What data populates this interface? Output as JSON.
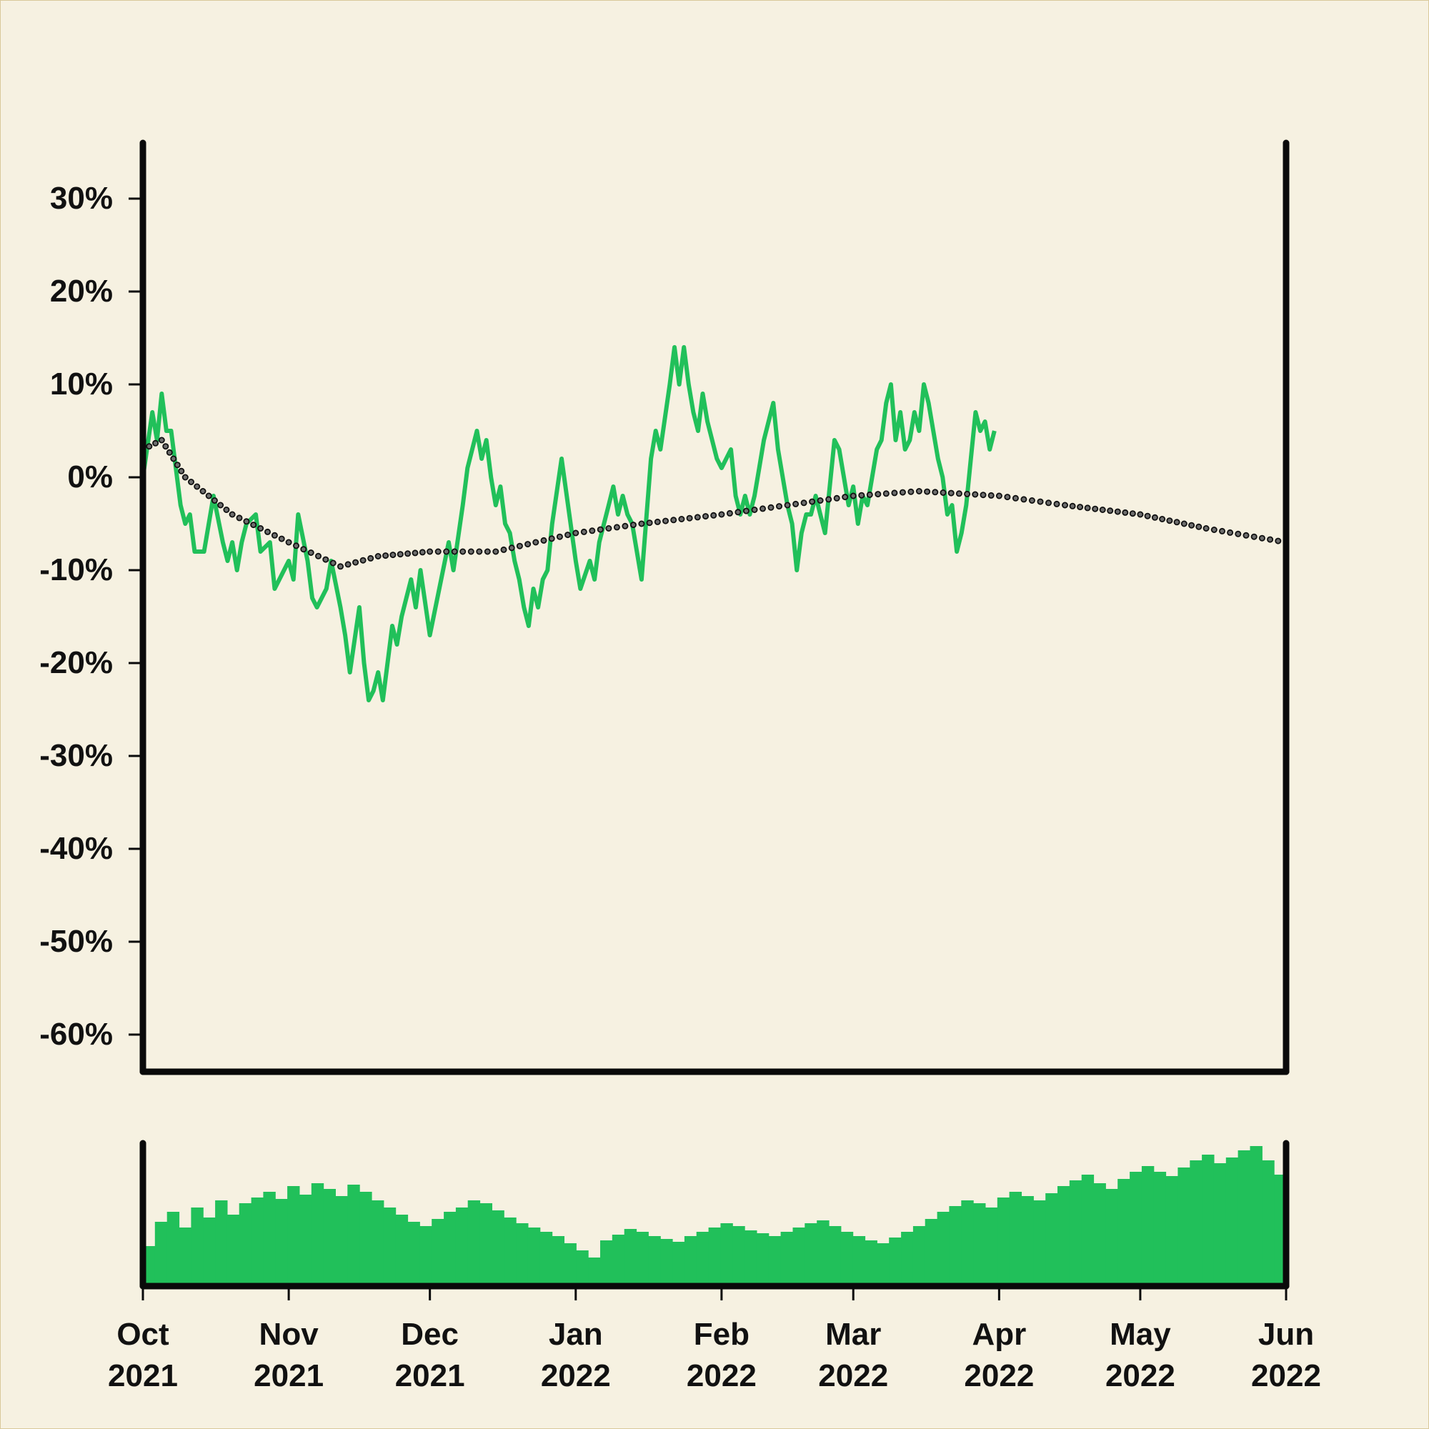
{
  "chart_data": {
    "type": "line",
    "colors": {
      "background": "#f6f1e1",
      "price_line": "#21c05a",
      "trend_dots": "#3a3a3a",
      "volume_bars": "#21c05a",
      "axes": "#0a0a0a"
    },
    "title": "",
    "xlabel": "",
    "ylabel": "",
    "ylim": [
      -64,
      36
    ],
    "y_ticks": [
      30,
      20,
      10,
      0,
      -10,
      -20,
      -30,
      -40,
      -50,
      -60
    ],
    "y_tick_labels": [
      "30%",
      "20%",
      "10%",
      "0%",
      "-10%",
      "-20%",
      "-30%",
      "-40%",
      "-50%",
      "-60%"
    ],
    "x_range": [
      "2021-10-01",
      "2022-06-01"
    ],
    "x_ticks": [
      {
        "date": "2021-10-01",
        "month": "Oct",
        "year": "2021"
      },
      {
        "date": "2021-11-01",
        "month": "Nov",
        "year": "2021"
      },
      {
        "date": "2021-12-01",
        "month": "Dec",
        "year": "2021"
      },
      {
        "date": "2022-01-01",
        "month": "Jan",
        "year": "2022"
      },
      {
        "date": "2022-02-01",
        "month": "Feb",
        "year": "2022"
      },
      {
        "date": "2022-03-01",
        "month": "Mar",
        "year": "2022"
      },
      {
        "date": "2022-04-01",
        "month": "Apr",
        "year": "2022"
      },
      {
        "date": "2022-05-01",
        "month": "May",
        "year": "2022"
      },
      {
        "date": "2022-06-01",
        "month": "Jun",
        "year": "2022"
      }
    ],
    "grid": false,
    "legend": "none",
    "series": [
      {
        "style": "solid line",
        "points": [
          [
            "2021-10-01",
            0
          ],
          [
            "2021-10-03",
            7
          ],
          [
            "2021-10-04",
            4
          ],
          [
            "2021-10-05",
            9
          ],
          [
            "2021-10-06",
            5
          ],
          [
            "2021-10-07",
            5
          ],
          [
            "2021-10-08",
            1
          ],
          [
            "2021-10-09",
            -3
          ],
          [
            "2021-10-10",
            -5
          ],
          [
            "2021-10-11",
            -4
          ],
          [
            "2021-10-12",
            -8
          ],
          [
            "2021-10-14",
            -8
          ],
          [
            "2021-10-16",
            -2
          ],
          [
            "2021-10-18",
            -7
          ],
          [
            "2021-10-19",
            -9
          ],
          [
            "2021-10-20",
            -7
          ],
          [
            "2021-10-21",
            -10
          ],
          [
            "2021-10-22",
            -7
          ],
          [
            "2021-10-23",
            -5
          ],
          [
            "2021-10-25",
            -4
          ],
          [
            "2021-10-26",
            -8
          ],
          [
            "2021-10-28",
            -7
          ],
          [
            "2021-10-29",
            -12
          ],
          [
            "2021-11-01",
            -9
          ],
          [
            "2021-11-02",
            -11
          ],
          [
            "2021-11-03",
            -4
          ],
          [
            "2021-11-05",
            -9
          ],
          [
            "2021-11-06",
            -13
          ],
          [
            "2021-11-07",
            -14
          ],
          [
            "2021-11-09",
            -12
          ],
          [
            "2021-11-10",
            -9
          ],
          [
            "2021-11-12",
            -14
          ],
          [
            "2021-11-13",
            -17
          ],
          [
            "2021-11-14",
            -21
          ],
          [
            "2021-11-16",
            -14
          ],
          [
            "2021-11-17",
            -20
          ],
          [
            "2021-11-18",
            -24
          ],
          [
            "2021-11-19",
            -23
          ],
          [
            "2021-11-20",
            -21
          ],
          [
            "2021-11-21",
            -24
          ],
          [
            "2021-11-23",
            -16
          ],
          [
            "2021-11-24",
            -18
          ],
          [
            "2021-11-25",
            -15
          ],
          [
            "2021-11-27",
            -11
          ],
          [
            "2021-11-28",
            -14
          ],
          [
            "2021-11-29",
            -10
          ],
          [
            "2021-12-01",
            -17
          ],
          [
            "2021-12-03",
            -12
          ],
          [
            "2021-12-05",
            -7
          ],
          [
            "2021-12-06",
            -10
          ],
          [
            "2021-12-08",
            -3
          ],
          [
            "2021-12-09",
            1
          ],
          [
            "2021-12-11",
            5
          ],
          [
            "2021-12-12",
            2
          ],
          [
            "2021-12-13",
            4
          ],
          [
            "2021-12-14",
            0
          ],
          [
            "2021-12-15",
            -3
          ],
          [
            "2021-12-16",
            -1
          ],
          [
            "2021-12-17",
            -5
          ],
          [
            "2021-12-18",
            -6
          ],
          [
            "2021-12-19",
            -9
          ],
          [
            "2021-12-20",
            -11
          ],
          [
            "2021-12-21",
            -14
          ],
          [
            "2021-12-22",
            -16
          ],
          [
            "2021-12-23",
            -12
          ],
          [
            "2021-12-24",
            -14
          ],
          [
            "2021-12-25",
            -11
          ],
          [
            "2021-12-26",
            -10
          ],
          [
            "2021-12-27",
            -5
          ],
          [
            "2021-12-29",
            2
          ],
          [
            "2022-01-01",
            -9
          ],
          [
            "2022-01-02",
            -12
          ],
          [
            "2022-01-04",
            -9
          ],
          [
            "2022-01-05",
            -11
          ],
          [
            "2022-01-06",
            -7
          ],
          [
            "2022-01-07",
            -5
          ],
          [
            "2022-01-08",
            -3
          ],
          [
            "2022-01-09",
            -1
          ],
          [
            "2022-01-10",
            -4
          ],
          [
            "2022-01-11",
            -2
          ],
          [
            "2022-01-12",
            -4
          ],
          [
            "2022-01-13",
            -5
          ],
          [
            "2022-01-15",
            -11
          ],
          [
            "2022-01-17",
            2
          ],
          [
            "2022-01-18",
            5
          ],
          [
            "2022-01-19",
            3
          ],
          [
            "2022-01-21",
            10
          ],
          [
            "2022-01-22",
            14
          ],
          [
            "2022-01-23",
            10
          ],
          [
            "2022-01-24",
            14
          ],
          [
            "2022-01-25",
            10
          ],
          [
            "2022-01-26",
            7
          ],
          [
            "2022-01-27",
            5
          ],
          [
            "2022-01-28",
            9
          ],
          [
            "2022-01-29",
            6
          ],
          [
            "2022-01-31",
            2
          ],
          [
            "2022-02-01",
            1
          ],
          [
            "2022-02-03",
            3
          ],
          [
            "2022-02-04",
            -2
          ],
          [
            "2022-02-05",
            -4
          ],
          [
            "2022-02-06",
            -2
          ],
          [
            "2022-02-07",
            -4
          ],
          [
            "2022-02-08",
            -2
          ],
          [
            "2022-02-09",
            1
          ],
          [
            "2022-02-10",
            4
          ],
          [
            "2022-02-12",
            8
          ],
          [
            "2022-02-13",
            3
          ],
          [
            "2022-02-15",
            -3
          ],
          [
            "2022-02-16",
            -5
          ],
          [
            "2022-02-17",
            -10
          ],
          [
            "2022-02-18",
            -6
          ],
          [
            "2022-02-19",
            -4
          ],
          [
            "2022-02-20",
            -4
          ],
          [
            "2022-02-21",
            -2
          ],
          [
            "2022-02-22",
            -4
          ],
          [
            "2022-02-23",
            -6
          ],
          [
            "2022-02-24",
            -1
          ],
          [
            "2022-02-25",
            4
          ],
          [
            "2022-02-26",
            3
          ],
          [
            "2022-02-27",
            0
          ],
          [
            "2022-02-28",
            -3
          ],
          [
            "2022-03-01",
            -1
          ],
          [
            "2022-03-02",
            -5
          ],
          [
            "2022-03-03",
            -2
          ],
          [
            "2022-03-04",
            -3
          ],
          [
            "2022-03-05",
            0
          ],
          [
            "2022-03-06",
            3
          ],
          [
            "2022-03-07",
            4
          ],
          [
            "2022-03-08",
            8
          ],
          [
            "2022-03-09",
            10
          ],
          [
            "2022-03-10",
            4
          ],
          [
            "2022-03-11",
            7
          ],
          [
            "2022-03-12",
            3
          ],
          [
            "2022-03-13",
            4
          ],
          [
            "2022-03-14",
            7
          ],
          [
            "2022-03-15",
            5
          ],
          [
            "2022-03-16",
            10
          ],
          [
            "2022-03-17",
            8
          ],
          [
            "2022-03-18",
            5
          ],
          [
            "2022-03-19",
            2
          ],
          [
            "2022-03-20",
            0
          ],
          [
            "2022-03-21",
            -4
          ],
          [
            "2022-03-22",
            -3
          ],
          [
            "2022-03-23",
            -8
          ],
          [
            "2022-03-24",
            -6
          ],
          [
            "2022-03-25",
            -3
          ],
          [
            "2022-03-26",
            2
          ],
          [
            "2022-03-27",
            7
          ],
          [
            "2022-03-28",
            5
          ],
          [
            "2022-03-29",
            6
          ],
          [
            "2022-03-30",
            3
          ],
          [
            "2022-03-31",
            5
          ]
        ]
      },
      {
        "style": "dotted trend line",
        "points": [
          [
            "2021-10-01",
            3
          ],
          [
            "2021-10-05",
            4
          ],
          [
            "2021-10-10",
            0
          ],
          [
            "2021-10-20",
            -4
          ],
          [
            "2021-11-01",
            -7
          ],
          [
            "2021-11-12",
            -9.6
          ],
          [
            "2021-11-20",
            -8.5
          ],
          [
            "2021-12-01",
            -8
          ],
          [
            "2021-12-15",
            -8
          ],
          [
            "2022-01-01",
            -6
          ],
          [
            "2022-01-15",
            -5
          ],
          [
            "2022-02-01",
            -4
          ],
          [
            "2022-02-15",
            -3
          ],
          [
            "2022-03-01",
            -2
          ],
          [
            "2022-03-15",
            -1.5
          ],
          [
            "2022-04-01",
            -2
          ],
          [
            "2022-04-15",
            -3
          ],
          [
            "2022-05-01",
            -4
          ],
          [
            "2022-05-15",
            -5.5
          ],
          [
            "2022-06-01",
            -7
          ]
        ]
      }
    ],
    "volume": {
      "type": "bar",
      "values": [
        0.28,
        0.45,
        0.52,
        0.41,
        0.55,
        0.48,
        0.6,
        0.5,
        0.58,
        0.62,
        0.66,
        0.61,
        0.7,
        0.64,
        0.72,
        0.68,
        0.63,
        0.71,
        0.66,
        0.6,
        0.55,
        0.5,
        0.45,
        0.42,
        0.47,
        0.52,
        0.55,
        0.6,
        0.58,
        0.53,
        0.48,
        0.44,
        0.41,
        0.38,
        0.35,
        0.3,
        0.25,
        0.2,
        0.32,
        0.36,
        0.4,
        0.38,
        0.35,
        0.33,
        0.31,
        0.35,
        0.38,
        0.41,
        0.44,
        0.42,
        0.39,
        0.37,
        0.35,
        0.38,
        0.41,
        0.44,
        0.46,
        0.42,
        0.38,
        0.35,
        0.32,
        0.3,
        0.34,
        0.38,
        0.42,
        0.47,
        0.52,
        0.56,
        0.6,
        0.58,
        0.55,
        0.62,
        0.66,
        0.63,
        0.6,
        0.65,
        0.7,
        0.74,
        0.78,
        0.72,
        0.68,
        0.75,
        0.8,
        0.84,
        0.8,
        0.77,
        0.83,
        0.88,
        0.92,
        0.86,
        0.9,
        0.95,
        0.98,
        0.88,
        0.78
      ],
      "ylim": [
        0,
        1
      ]
    }
  }
}
